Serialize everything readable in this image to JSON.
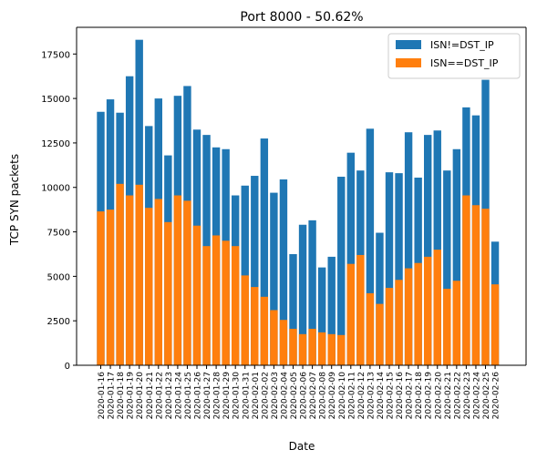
{
  "chart_data": {
    "type": "bar",
    "stacked": "overlay",
    "title": "Port 8000 - 50.62%",
    "xlabel": "Date",
    "ylabel": "TCP SYN packets",
    "ylim": [
      0,
      19000
    ],
    "yticks": [
      0,
      2500,
      5000,
      7500,
      10000,
      12500,
      15000,
      17500
    ],
    "grid": false,
    "legend_position": "top-right",
    "categories": [
      "2020-01-16",
      "2020-01-17",
      "2020-01-18",
      "2020-01-19",
      "2020-01-20",
      "2020-01-21",
      "2020-01-22",
      "2020-01-23",
      "2020-01-24",
      "2020-01-25",
      "2020-01-26",
      "2020-01-27",
      "2020-01-28",
      "2020-01-29",
      "2020-01-30",
      "2020-01-31",
      "2020-02-01",
      "2020-02-02",
      "2020-02-03",
      "2020-02-04",
      "2020-02-05",
      "2020-02-06",
      "2020-02-07",
      "2020-02-08",
      "2020-02-09",
      "2020-02-10",
      "2020-02-11",
      "2020-02-12",
      "2020-02-13",
      "2020-02-14",
      "2020-02-15",
      "2020-02-16",
      "2020-02-17",
      "2020-02-18",
      "2020-02-19",
      "2020-02-20",
      "2020-02-21",
      "2020-02-22",
      "2020-02-23",
      "2020-02-24",
      "2020-02-25",
      "2020-02-26"
    ],
    "xtick_labels": [
      "2020-01-16",
      "2020-01-17",
      "2020-01-18",
      "2020-01-19",
      "2020-01-20",
      "2020-01-21",
      "2020-01-22",
      "2020-01-23",
      "2020-01-24",
      "2020-01-25",
      "2020-01-26",
      "2020-01-27",
      "2020-01-28",
      "2020-01-29",
      "2020-01-30",
      "2020-01-31",
      "2020-02-01",
      "2020-02-02",
      "2020-02-03",
      "2020-02-04",
      "2020-02-05",
      "2020-02-06",
      "2020-02-07",
      "2020-02-08",
      "2020-02-09",
      "2020-02-10",
      "2020-02-11",
      "2020-02-12",
      "2020-02-13",
      "2020-02-14",
      "2020-02-15",
      "2020-02-16",
      "2020-02-17",
      "2020-02-18",
      "2020-02-19",
      "2020-02-20",
      "2020-02-21",
      "2020-02-22",
      "2020-02-23",
      "2020-02-24",
      "2020-02-25",
      "2020-02-26"
    ],
    "series": [
      {
        "name": "ISN!=DST_IP",
        "color": "#1f77b4",
        "values": [
          14250,
          14950,
          14200,
          16250,
          18300,
          13450,
          15000,
          11800,
          15150,
          15700,
          13250,
          12950,
          12250,
          12150,
          9550,
          10100,
          10650,
          12750,
          9700,
          10450,
          6250,
          7900,
          8150,
          5500,
          6100,
          10600,
          11950,
          10950,
          13300,
          7450,
          10850,
          10800,
          13100,
          10550,
          12950,
          13200,
          10950,
          12150,
          14500,
          14050,
          16050,
          6950
        ]
      },
      {
        "name": "ISN==DST_IP",
        "color": "#ff7f0e",
        "values": [
          8650,
          8750,
          10200,
          9550,
          10150,
          8850,
          9350,
          8050,
          9550,
          9250,
          7850,
          6700,
          7300,
          7000,
          6700,
          5050,
          4400,
          3850,
          3100,
          2550,
          2050,
          1750,
          2050,
          1850,
          1750,
          1700,
          5700,
          6200,
          4050,
          3450,
          4350,
          4800,
          5450,
          5750,
          6100,
          6500,
          4300,
          4750,
          9550,
          9000,
          8800,
          4550
        ]
      }
    ]
  }
}
